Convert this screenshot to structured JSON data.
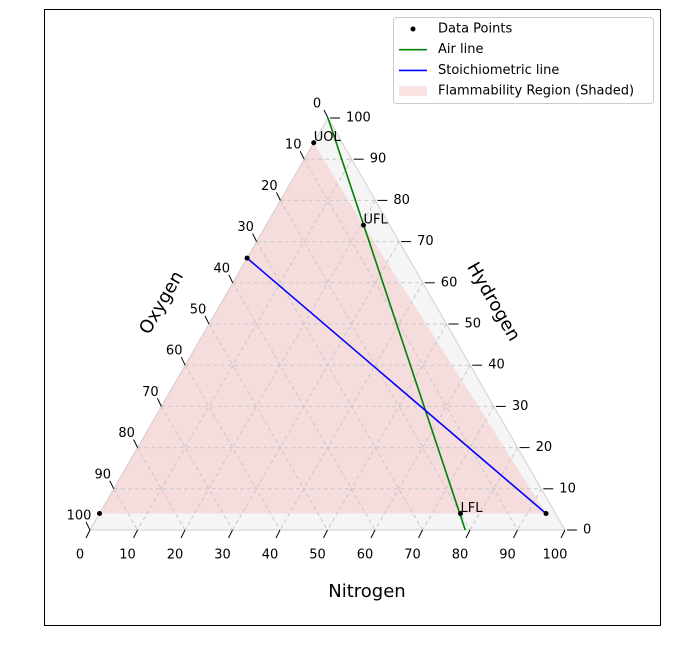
{
  "chart_data": {
    "type": "ternary",
    "axis_labels": {
      "hydrogen": "Hydrogen",
      "oxygen": "Oxygen",
      "nitrogen": "Nitrogen"
    },
    "ticks": [
      0,
      10,
      20,
      30,
      40,
      50,
      60,
      70,
      80,
      90,
      100
    ],
    "grid": true,
    "legend": "upper right",
    "series": [
      {
        "name": "Data Points",
        "kind": "points",
        "color": "#000000",
        "hydrogen": [
          4,
          94,
          74,
          66,
          4,
          4
        ],
        "oxygen": [
          96,
          6,
          5.5,
          34,
          20,
          2
        ],
        "nitrogen": [
          0,
          0,
          20.5,
          0,
          76,
          94
        ],
        "labels": [
          null,
          "UOL",
          "UFL",
          null,
          "LFL",
          null
        ]
      },
      {
        "name": "Air line",
        "kind": "line",
        "color": "#008000",
        "hydrogen": [
          100,
          0
        ],
        "oxygen": [
          0,
          21
        ],
        "nitrogen": [
          0,
          79
        ]
      },
      {
        "name": "Stoichiometric line",
        "kind": "line",
        "color": "#0000ff",
        "hydrogen": [
          66,
          4
        ],
        "oxygen": [
          34,
          2
        ],
        "nitrogen": [
          0,
          94
        ]
      },
      {
        "name": "Flammability Region (Shaded)",
        "kind": "area",
        "color": "#f4b6b9",
        "hydrogen": [
          4,
          94,
          74,
          4
        ],
        "oxygen": [
          96,
          6,
          5.5,
          2
        ],
        "nitrogen": [
          0,
          0,
          20.5,
          94
        ]
      }
    ]
  }
}
